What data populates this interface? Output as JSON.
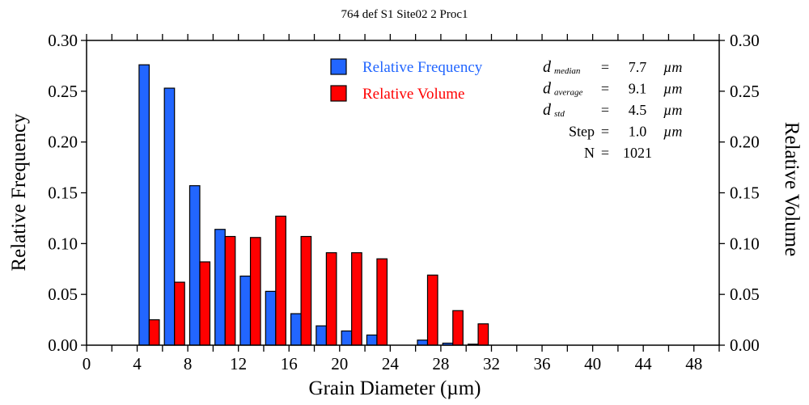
{
  "chart_data": {
    "type": "bar",
    "title": "764 def S1 Site02 2 Proc1",
    "xlabel": "Grain Diameter (µm)",
    "ylabel": "Relative Frequency",
    "y2label": "Relative Volume",
    "xlim": [
      0,
      50
    ],
    "ylim": [
      0,
      0.3
    ],
    "xticks": [
      0,
      4,
      8,
      12,
      16,
      20,
      24,
      28,
      32,
      36,
      40,
      44,
      48
    ],
    "yticks": [
      "0.00",
      "0.05",
      "0.10",
      "0.15",
      "0.20",
      "0.25",
      "0.30"
    ],
    "bin_width": 2,
    "bin_starts": [
      4,
      6,
      8,
      10,
      12,
      14,
      16,
      18,
      20,
      22,
      24,
      26,
      28,
      30
    ],
    "series": [
      {
        "name": "Relative Frequency",
        "color": "#2266ff",
        "values": [
          0.276,
          0.253,
          0.157,
          0.114,
          0.068,
          0.053,
          0.031,
          0.019,
          0.014,
          0.01,
          0,
          0.005,
          0.002,
          0.001
        ]
      },
      {
        "name": "Relative Volume",
        "color": "#ff0000",
        "values": [
          0.025,
          0.062,
          0.082,
          0.107,
          0.106,
          0.127,
          0.107,
          0.091,
          0.091,
          0.085,
          0,
          0.069,
          0.034,
          0.021
        ]
      }
    ],
    "legend_position": "top-center",
    "stats": [
      {
        "label": "d",
        "sub": "median",
        "eq": "=",
        "value": "7.7",
        "unit": "µm"
      },
      {
        "label": "d",
        "sub": "average",
        "eq": "=",
        "value": "9.1",
        "unit": "µm"
      },
      {
        "label": "d",
        "sub": "std",
        "eq": "=",
        "value": "4.5",
        "unit": "µm"
      },
      {
        "label": "Step",
        "sub": "",
        "eq": "=",
        "value": "1.0",
        "unit": "µm"
      },
      {
        "label": "N",
        "sub": "",
        "eq": "=",
        "value": "1021",
        "unit": ""
      }
    ]
  }
}
